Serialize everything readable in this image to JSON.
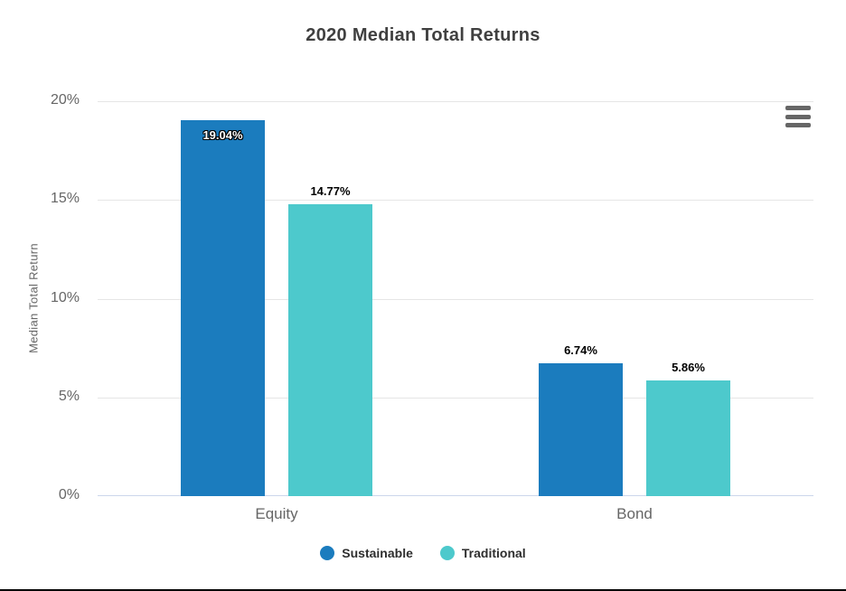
{
  "page": {
    "background": "#ffffff",
    "bottom_edge_color": "#000000"
  },
  "icons": {
    "context_menu": "hamburger-icon"
  },
  "chart_data": {
    "type": "bar",
    "title": "2020 Median Total Returns",
    "xlabel": "",
    "ylabel": "Median Total Return",
    "categories": [
      "Equity",
      "Bond"
    ],
    "series": [
      {
        "name": "Sustainable",
        "color": "#1b7cbe",
        "values": [
          19.04,
          6.74
        ],
        "labels": [
          "19.04%",
          "6.74%"
        ]
      },
      {
        "name": "Traditional",
        "color": "#4dc9cc",
        "values": [
          14.77,
          5.86
        ],
        "labels": [
          "14.77%",
          "5.86%"
        ]
      }
    ],
    "ylim": [
      0,
      20
    ],
    "yticks": [
      {
        "value": 0,
        "label": "0%"
      },
      {
        "value": 5,
        "label": "5%"
      },
      {
        "value": 10,
        "label": "10%"
      },
      {
        "value": 15,
        "label": "15%"
      },
      {
        "value": 20,
        "label": "20%"
      }
    ],
    "grid": true,
    "legend_position": "bottom",
    "style": {
      "gridline_color": "#e6e6e6",
      "axis_line_color": "#ccd6eb",
      "tick_label_color": "#666666",
      "title_color": "#404040",
      "legend_text_color": "#2e2e2e",
      "data_label_color": "#000000",
      "menu_icon_color": "#666666"
    }
  }
}
